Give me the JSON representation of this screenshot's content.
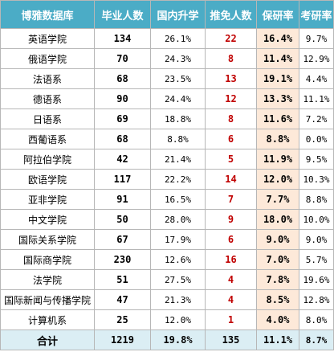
{
  "headers": [
    "博雅数据库",
    "毕业人数",
    "国内升学",
    "推免人数",
    "保研率",
    "考研率"
  ],
  "rows": [
    {
      "name": "英语学院",
      "grads": "134",
      "domestic": "26.1%",
      "tuimian": "22",
      "baoyan": "16.4%",
      "kaoyan": "9.7%"
    },
    {
      "name": "俄语学院",
      "grads": "70",
      "domestic": "24.3%",
      "tuimian": "8",
      "baoyan": "11.4%",
      "kaoyan": "12.9%"
    },
    {
      "name": "法语系",
      "grads": "68",
      "domestic": "23.5%",
      "tuimian": "13",
      "baoyan": "19.1%",
      "kaoyan": "4.4%"
    },
    {
      "name": "德语系",
      "grads": "90",
      "domestic": "24.4%",
      "tuimian": "12",
      "baoyan": "13.3%",
      "kaoyan": "11.1%"
    },
    {
      "name": "日语系",
      "grads": "69",
      "domestic": "18.8%",
      "tuimian": "8",
      "baoyan": "11.6%",
      "kaoyan": "7.2%"
    },
    {
      "name": "西葡语系",
      "grads": "68",
      "domestic": "8.8%",
      "tuimian": "6",
      "baoyan": "8.8%",
      "kaoyan": "0.0%"
    },
    {
      "name": "阿拉伯学院",
      "grads": "42",
      "domestic": "21.4%",
      "tuimian": "5",
      "baoyan": "11.9%",
      "kaoyan": "9.5%"
    },
    {
      "name": "欧语学院",
      "grads": "117",
      "domestic": "22.2%",
      "tuimian": "14",
      "baoyan": "12.0%",
      "kaoyan": "10.3%"
    },
    {
      "name": "亚非学院",
      "grads": "91",
      "domestic": "16.5%",
      "tuimian": "7",
      "baoyan": "7.7%",
      "kaoyan": "8.8%"
    },
    {
      "name": "中文学院",
      "grads": "50",
      "domestic": "28.0%",
      "tuimian": "9",
      "baoyan": "18.0%",
      "kaoyan": "10.0%"
    },
    {
      "name": "国际关系学院",
      "grads": "67",
      "domestic": "17.9%",
      "tuimian": "6",
      "baoyan": "9.0%",
      "kaoyan": "9.0%"
    },
    {
      "name": "国际商学院",
      "grads": "230",
      "domestic": "12.6%",
      "tuimian": "16",
      "baoyan": "7.0%",
      "kaoyan": "5.7%"
    },
    {
      "name": "法学院",
      "grads": "51",
      "domestic": "27.5%",
      "tuimian": "4",
      "baoyan": "7.8%",
      "kaoyan": "19.6%"
    },
    {
      "name": "国际新闻与传播学院",
      "grads": "47",
      "domestic": "21.3%",
      "tuimian": "4",
      "baoyan": "8.5%",
      "kaoyan": "12.8%"
    },
    {
      "name": "计算机系",
      "grads": "25",
      "domestic": "12.0%",
      "tuimian": "1",
      "baoyan": "4.0%",
      "kaoyan": "8.0%"
    }
  ],
  "total": {
    "name": "合计",
    "grads": "1219",
    "domestic": "19.8%",
    "tuimian": "135",
    "baoyan": "11.1%",
    "kaoyan": "8.7%"
  },
  "colors": {
    "header_bg": "#4bacc6",
    "highlight_red": "#c00000",
    "baoyan_bg": "#fde9d9",
    "total_bg": "#dbeef4"
  }
}
